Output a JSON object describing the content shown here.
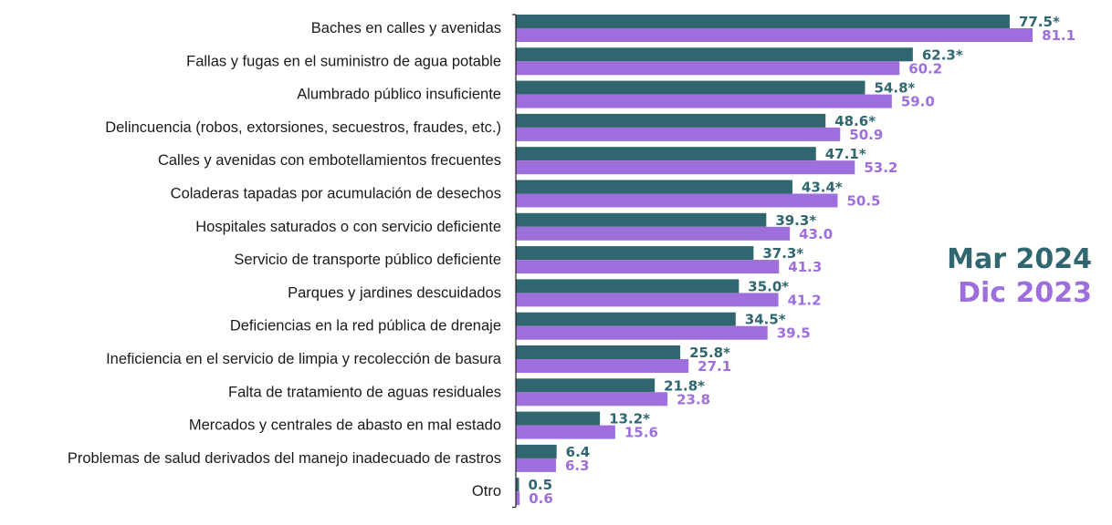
{
  "chart_data": {
    "type": "bar",
    "orientation": "horizontal",
    "categories": [
      "Baches en calles y avenidas",
      "Fallas y fugas en el suministro de agua potable",
      "Alumbrado público insuficiente",
      "Delincuencia (robos, extorsiones, secuestros, fraudes, etc.)",
      "Calles y avenidas con embotellamientos frecuentes",
      "Coladeras tapadas por acumulación de desechos",
      "Hospitales saturados o con servicio deficiente",
      "Servicio de transporte público deficiente",
      "Parques y jardines descuidados",
      "Deficiencias en la red pública de drenaje",
      "Ineficiencia en el servicio de limpia y recolección de basura",
      "Falta de tratamiento de aguas residuales",
      "Mercados y centrales de abasto en mal estado",
      "Problemas de salud derivados del manejo inadecuado de rastros",
      "Otro"
    ],
    "series": [
      {
        "name": "Mar 2024",
        "color": "#2f6670",
        "values": [
          77.5,
          62.3,
          54.8,
          48.6,
          47.1,
          43.4,
          39.3,
          37.3,
          35.0,
          34.5,
          25.8,
          21.8,
          13.2,
          6.4,
          0.5
        ],
        "labels": [
          "77.5*",
          "62.3*",
          "54.8*",
          "48.6*",
          "47.1*",
          "43.4*",
          "39.3*",
          "37.3*",
          "35.0*",
          "34.5*",
          "25.8*",
          "21.8*",
          "13.2*",
          "6.4",
          "0.5"
        ]
      },
      {
        "name": "Dic 2023",
        "color": "#9e6fdc",
        "values": [
          81.1,
          60.2,
          59.0,
          50.9,
          53.2,
          50.5,
          43.0,
          41.3,
          41.2,
          39.5,
          27.1,
          23.8,
          15.6,
          6.3,
          0.6
        ],
        "labels": [
          "81.1",
          "60.2",
          "59.0",
          "50.9",
          "53.2",
          "50.5",
          "43.0",
          "41.3",
          "41.2",
          "39.5",
          "27.1",
          "23.8",
          "15.6",
          "6.3",
          "0.6"
        ]
      }
    ],
    "xlim": [
      0,
      100
    ],
    "grid": false,
    "legend_position": "right"
  }
}
